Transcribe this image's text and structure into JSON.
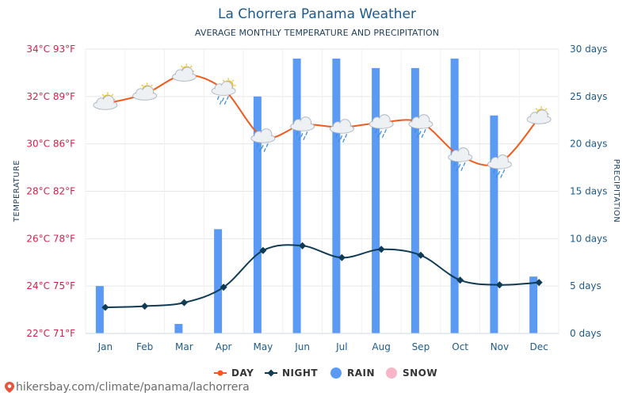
{
  "header": {
    "title": "La Chorrera Panama Weather",
    "subtitle": "AVERAGE MONTHLY TEMPERATURE AND PRECIPITATION"
  },
  "footer": {
    "url": "hikersbay.com/climate/panama/lachorrera"
  },
  "colors": {
    "day": "#f05a1c",
    "night": "#0f3b55",
    "rain": "#5a9af5",
    "snow": "#f7b6c8",
    "left_axis_text": "#d0224d",
    "right_axis_text": "#1f5b8a"
  },
  "chart_data": {
    "type": "line+bar",
    "title": "La Chorrera Panama Weather",
    "subtitle": "AVERAGE MONTHLY TEMPERATURE AND PRECIPITATION",
    "categories": [
      "Jan",
      "Feb",
      "Mar",
      "Apr",
      "May",
      "Jun",
      "Jul",
      "Aug",
      "Sep",
      "Oct",
      "Nov",
      "Dec"
    ],
    "left_axis": {
      "label": "TEMPERATURE",
      "range_c": [
        22,
        34
      ],
      "ticks": [
        "22°C 71°F",
        "24°C 75°F",
        "26°C 78°F",
        "28°C 82°F",
        "30°C 86°F",
        "32°C 89°F",
        "34°C 93°F"
      ]
    },
    "right_axis": {
      "label": "PRECIPITATION",
      "range_days": [
        0,
        30
      ],
      "ticks": [
        "0 days",
        "5 days",
        "10 days",
        "15 days",
        "20 days",
        "25 days",
        "30 days"
      ]
    },
    "series": [
      {
        "name": "DAY",
        "kind": "line",
        "axis": "left",
        "unit": "°C",
        "values": [
          31.7,
          32.1,
          32.9,
          32.3,
          30.3,
          30.8,
          30.7,
          30.9,
          30.9,
          29.5,
          29.2,
          31.1
        ],
        "weather_icons": [
          "sun-cloud",
          "sun-cloud",
          "sun-cloud",
          "sun-rain",
          "rain",
          "rain",
          "rain",
          "rain",
          "rain",
          "rain",
          "rain",
          "sun-cloud"
        ]
      },
      {
        "name": "NIGHT",
        "kind": "line",
        "axis": "left",
        "unit": "°C",
        "values": [
          23.1,
          23.15,
          23.3,
          23.95,
          25.5,
          25.7,
          25.2,
          25.55,
          25.3,
          24.25,
          24.05,
          24.15
        ]
      },
      {
        "name": "RAIN",
        "kind": "bar",
        "axis": "right",
        "unit": "days",
        "values": [
          5,
          0,
          1,
          11,
          25,
          29,
          29,
          28,
          28,
          29,
          23,
          6
        ]
      },
      {
        "name": "SNOW",
        "kind": "bar",
        "axis": "right",
        "unit": "days",
        "values": [
          0,
          0,
          0,
          0,
          0,
          0,
          0,
          0,
          0,
          0,
          0,
          0
        ]
      }
    ],
    "legend": [
      "DAY",
      "NIGHT",
      "RAIN",
      "SNOW"
    ],
    "legend_position": "bottom",
    "grid": true
  }
}
